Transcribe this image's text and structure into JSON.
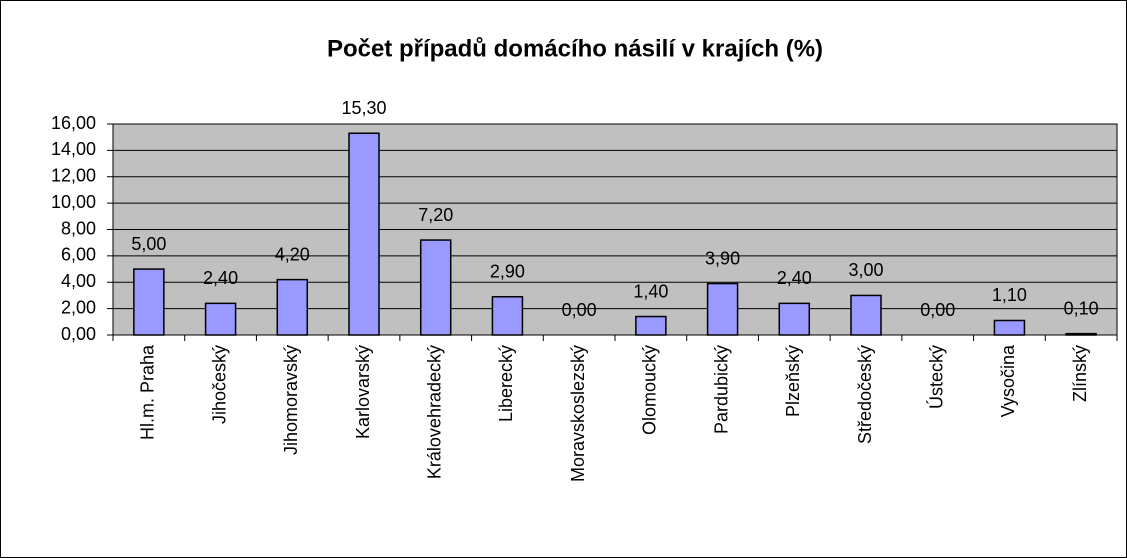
{
  "chart_data": {
    "type": "bar",
    "title": "Počet případů domácího násilí v krajích (%)",
    "categories": [
      "Hl.m. Praha",
      "Jihočeský",
      "Jihomoravský",
      "Karlovarský",
      "Královehradecký",
      "Liberecký",
      "Moravskoslezský",
      "Olomoucký",
      "Pardubický",
      "Plzeňský",
      "Středočeský",
      "Ústecký",
      "Vysočina",
      "Zlínský"
    ],
    "values": [
      5.0,
      2.4,
      4.2,
      15.3,
      7.2,
      2.9,
      0.0,
      1.4,
      3.9,
      2.4,
      3.0,
      0.0,
      1.1,
      0.1
    ],
    "value_labels": [
      "5,00",
      "2,40",
      "4,20",
      "15,30",
      "7,20",
      "2,90",
      "0,00",
      "1,40",
      "3,90",
      "2,40",
      "3,00",
      "0,00",
      "1,10",
      "0,10"
    ],
    "color": "#9999ff",
    "plot_background": "#c0c0c0",
    "grid": true,
    "ylim": [
      0,
      16
    ],
    "yticks": [
      {
        "value": 0,
        "label": "0,00"
      },
      {
        "value": 2,
        "label": "2,00"
      },
      {
        "value": 4,
        "label": "4,00"
      },
      {
        "value": 6,
        "label": "6,00"
      },
      {
        "value": 8,
        "label": "8,00"
      },
      {
        "value": 10,
        "label": "10,00"
      },
      {
        "value": 12,
        "label": "12,00"
      },
      {
        "value": 14,
        "label": "14,00"
      },
      {
        "value": 16,
        "label": "16,00"
      }
    ]
  }
}
